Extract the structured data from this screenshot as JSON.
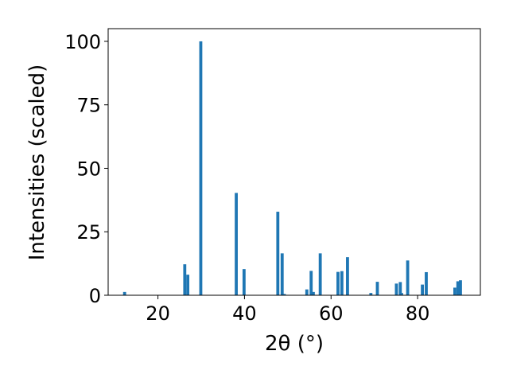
{
  "chart_data": {
    "type": "bar",
    "title": "",
    "xlabel": "2θ (°)",
    "ylabel": "Intensities (scaled)",
    "xlim": [
      8.5,
      94.5
    ],
    "ylim": [
      0,
      105
    ],
    "xticks": [
      20,
      40,
      60,
      80
    ],
    "yticks": [
      0,
      25,
      50,
      75,
      100
    ],
    "bar_width_deg": 0.7,
    "color": "#1f77b4",
    "grid": false,
    "legend": "none",
    "x": [
      12.3,
      26.2,
      26.9,
      29.9,
      38.1,
      39.9,
      47.7,
      48.7,
      49.2,
      54.4,
      55.4,
      55.9,
      57.5,
      61.6,
      62.5,
      63.8,
      69.2,
      70.7,
      75.1,
      76.0,
      76.3,
      77.7,
      81.1,
      82.0,
      88.6,
      89.3,
      89.9
    ],
    "values": [
      1.3,
      12.2,
      8.1,
      100.0,
      40.3,
      10.3,
      32.9,
      16.5,
      0.5,
      2.3,
      9.6,
      1.3,
      16.5,
      9.2,
      9.5,
      15.0,
      0.9,
      5.3,
      4.6,
      5.2,
      0.9,
      13.7,
      4.2,
      9.1,
      3.0,
      5.5,
      5.9
    ]
  }
}
